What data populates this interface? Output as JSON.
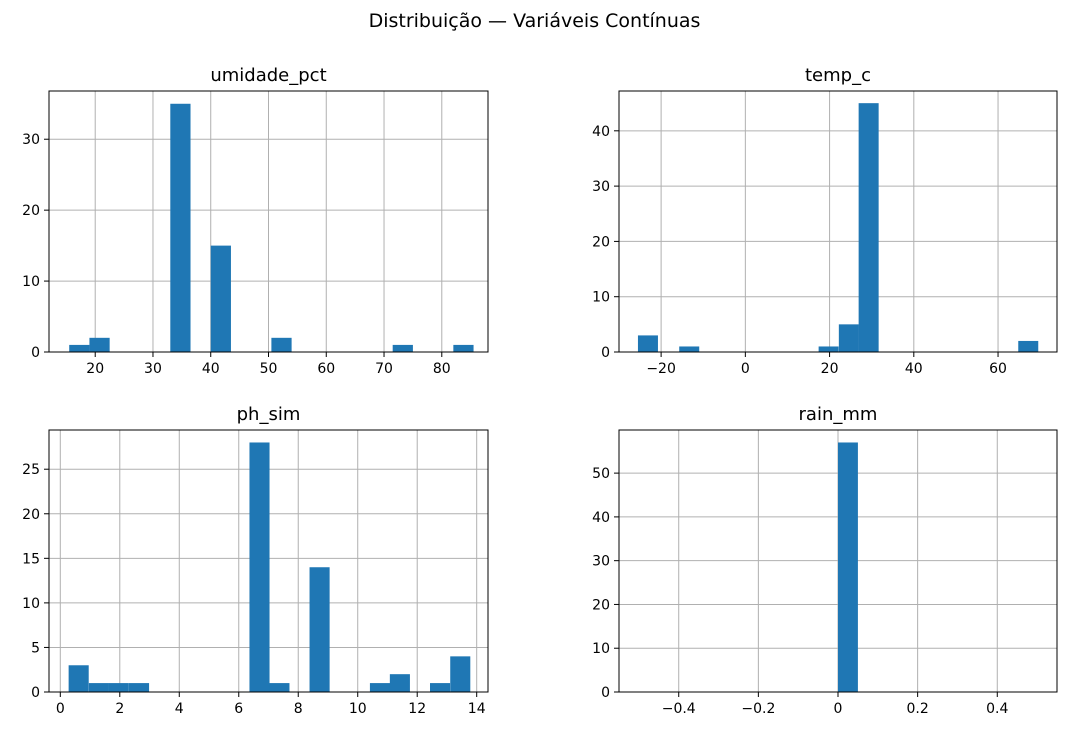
{
  "figure": {
    "suptitle": "Distribuição — Variáveis Contínuas"
  },
  "chart_data": [
    {
      "type": "bar",
      "title": "umidade_pct",
      "xlabel": "",
      "ylabel": "",
      "grid": true,
      "bar_color": "#1f77b4",
      "xlim": [
        12.0,
        88.0
      ],
      "ylim": [
        0,
        36.8
      ],
      "xticks": [
        20,
        30,
        40,
        50,
        60,
        70,
        80
      ],
      "yticks": [
        0,
        10,
        20,
        30
      ],
      "bin_width": 3.5,
      "bins": [
        {
          "x0": 15.5,
          "count": 1
        },
        {
          "x0": 19.0,
          "count": 2
        },
        {
          "x0": 33.0,
          "count": 35
        },
        {
          "x0": 40.0,
          "count": 15
        },
        {
          "x0": 50.5,
          "count": 2
        },
        {
          "x0": 71.5,
          "count": 1
        },
        {
          "x0": 82.0,
          "count": 1
        }
      ]
    },
    {
      "type": "bar",
      "title": "temp_c",
      "xlabel": "",
      "ylabel": "",
      "grid": true,
      "bar_color": "#1f77b4",
      "xlim": [
        -30.0,
        74.0
      ],
      "ylim": [
        0,
        47.2
      ],
      "xticks": [
        -20,
        0,
        20,
        40,
        60
      ],
      "yticks": [
        0,
        10,
        20,
        30,
        40
      ],
      "bin_width": 4.75,
      "bins": [
        {
          "x0": -25.5,
          "count": 3
        },
        {
          "x0": -15.7,
          "count": 1
        },
        {
          "x0": 17.4,
          "count": 1
        },
        {
          "x0": 22.2,
          "count": 5
        },
        {
          "x0": 26.9,
          "count": 45
        },
        {
          "x0": 64.8,
          "count": 2
        }
      ]
    },
    {
      "type": "bar",
      "title": "ph_sim",
      "xlabel": "",
      "ylabel": "",
      "grid": true,
      "bar_color": "#1f77b4",
      "xlim": [
        -0.38,
        14.38
      ],
      "ylim": [
        0,
        29.4
      ],
      "xticks": [
        0,
        2,
        4,
        6,
        8,
        10,
        12,
        14
      ],
      "yticks": [
        0,
        5,
        10,
        15,
        20,
        25
      ],
      "bin_width": 0.675,
      "bins": [
        {
          "x0": 0.28,
          "count": 3
        },
        {
          "x0": 0.96,
          "count": 1
        },
        {
          "x0": 1.63,
          "count": 1
        },
        {
          "x0": 2.31,
          "count": 1
        },
        {
          "x0": 6.36,
          "count": 28
        },
        {
          "x0": 7.03,
          "count": 1
        },
        {
          "x0": 8.38,
          "count": 14
        },
        {
          "x0": 10.41,
          "count": 1
        },
        {
          "x0": 11.08,
          "count": 2
        },
        {
          "x0": 12.43,
          "count": 1
        },
        {
          "x0": 13.11,
          "count": 4
        }
      ]
    },
    {
      "type": "bar",
      "title": "rain_mm",
      "xlabel": "",
      "ylabel": "",
      "grid": true,
      "bar_color": "#1f77b4",
      "xlim": [
        -0.55,
        0.55
      ],
      "ylim": [
        0,
        59.85
      ],
      "xticks": [
        -0.4,
        -0.2,
        0.0,
        0.2,
        0.4
      ],
      "yticks": [
        0,
        10,
        20,
        30,
        40,
        50
      ],
      "bin_width": 0.05,
      "bins": [
        {
          "x0": 0.0,
          "count": 57
        }
      ]
    }
  ]
}
